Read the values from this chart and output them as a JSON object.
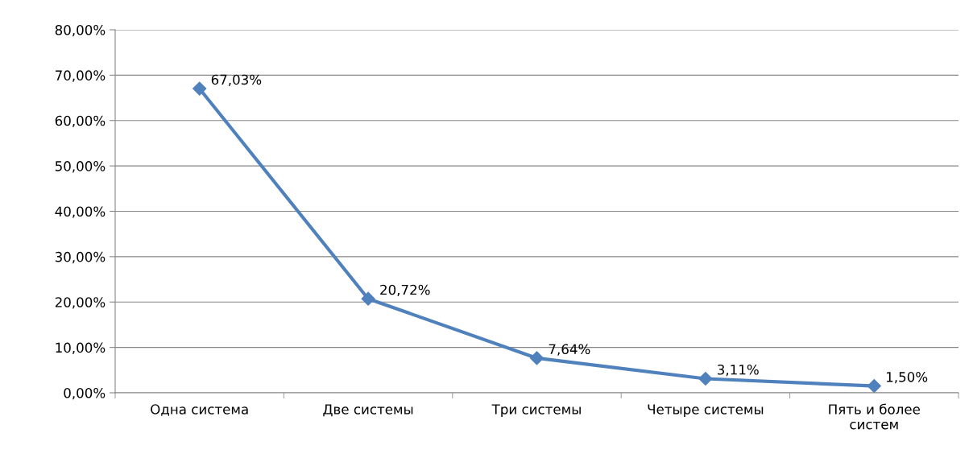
{
  "chart_data": {
    "type": "line",
    "categories": [
      "Одна система",
      "Две системы",
      "Три системы",
      "Четыре системы",
      "Пять и более\nсистем"
    ],
    "series": [
      {
        "color": "#4f81bd",
        "values": [
          67.03,
          20.72,
          7.64,
          3.11,
          1.5
        ],
        "value_labels": [
          "67,03%",
          "20,72%",
          "7,64%",
          "3,11%",
          "1,50%"
        ]
      }
    ],
    "ylim": [
      0,
      80
    ],
    "yticks": [
      {
        "value": 0,
        "label": "0,00%"
      },
      {
        "value": 10,
        "label": "10,00%"
      },
      {
        "value": 20,
        "label": "20,00%"
      },
      {
        "value": 30,
        "label": "30,00%"
      },
      {
        "value": 40,
        "label": "40,00%"
      },
      {
        "value": 50,
        "label": "50,00%"
      },
      {
        "value": 60,
        "label": "60,00%"
      },
      {
        "value": 70,
        "label": "70,00%"
      },
      {
        "value": 80,
        "label": "80,00%"
      }
    ],
    "grid": "y",
    "marker": "diamond",
    "line_style": "solid",
    "legend": false
  }
}
